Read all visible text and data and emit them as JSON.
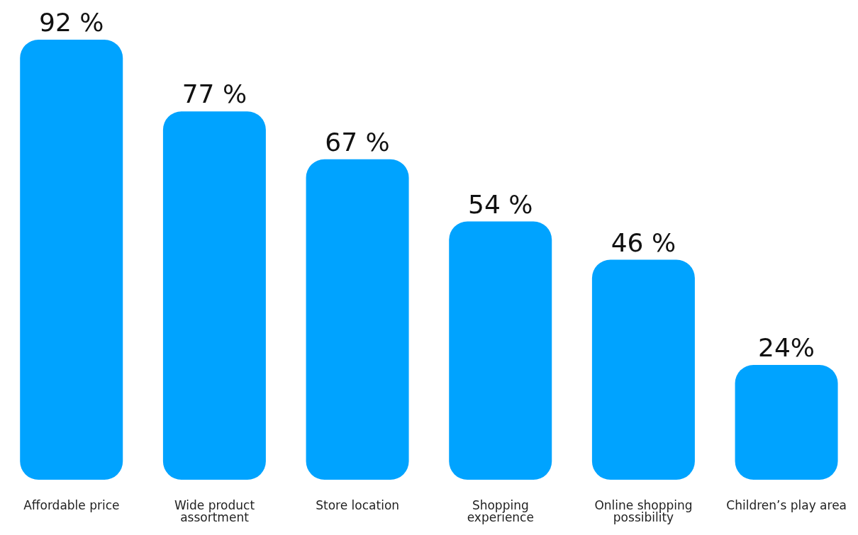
{
  "chart_data": {
    "type": "bar",
    "categories": [
      "Affordable price",
      "Wide product assortment",
      "Store location",
      "Shopping experience",
      "Online shopping possibility",
      "Children’s play area"
    ],
    "values": [
      92,
      77,
      67,
      54,
      46,
      24
    ],
    "value_labels": [
      "92 %",
      "77 %",
      "67 %",
      "54 %",
      "46 %",
      "24%"
    ],
    "color": "#00a3ff"
  }
}
